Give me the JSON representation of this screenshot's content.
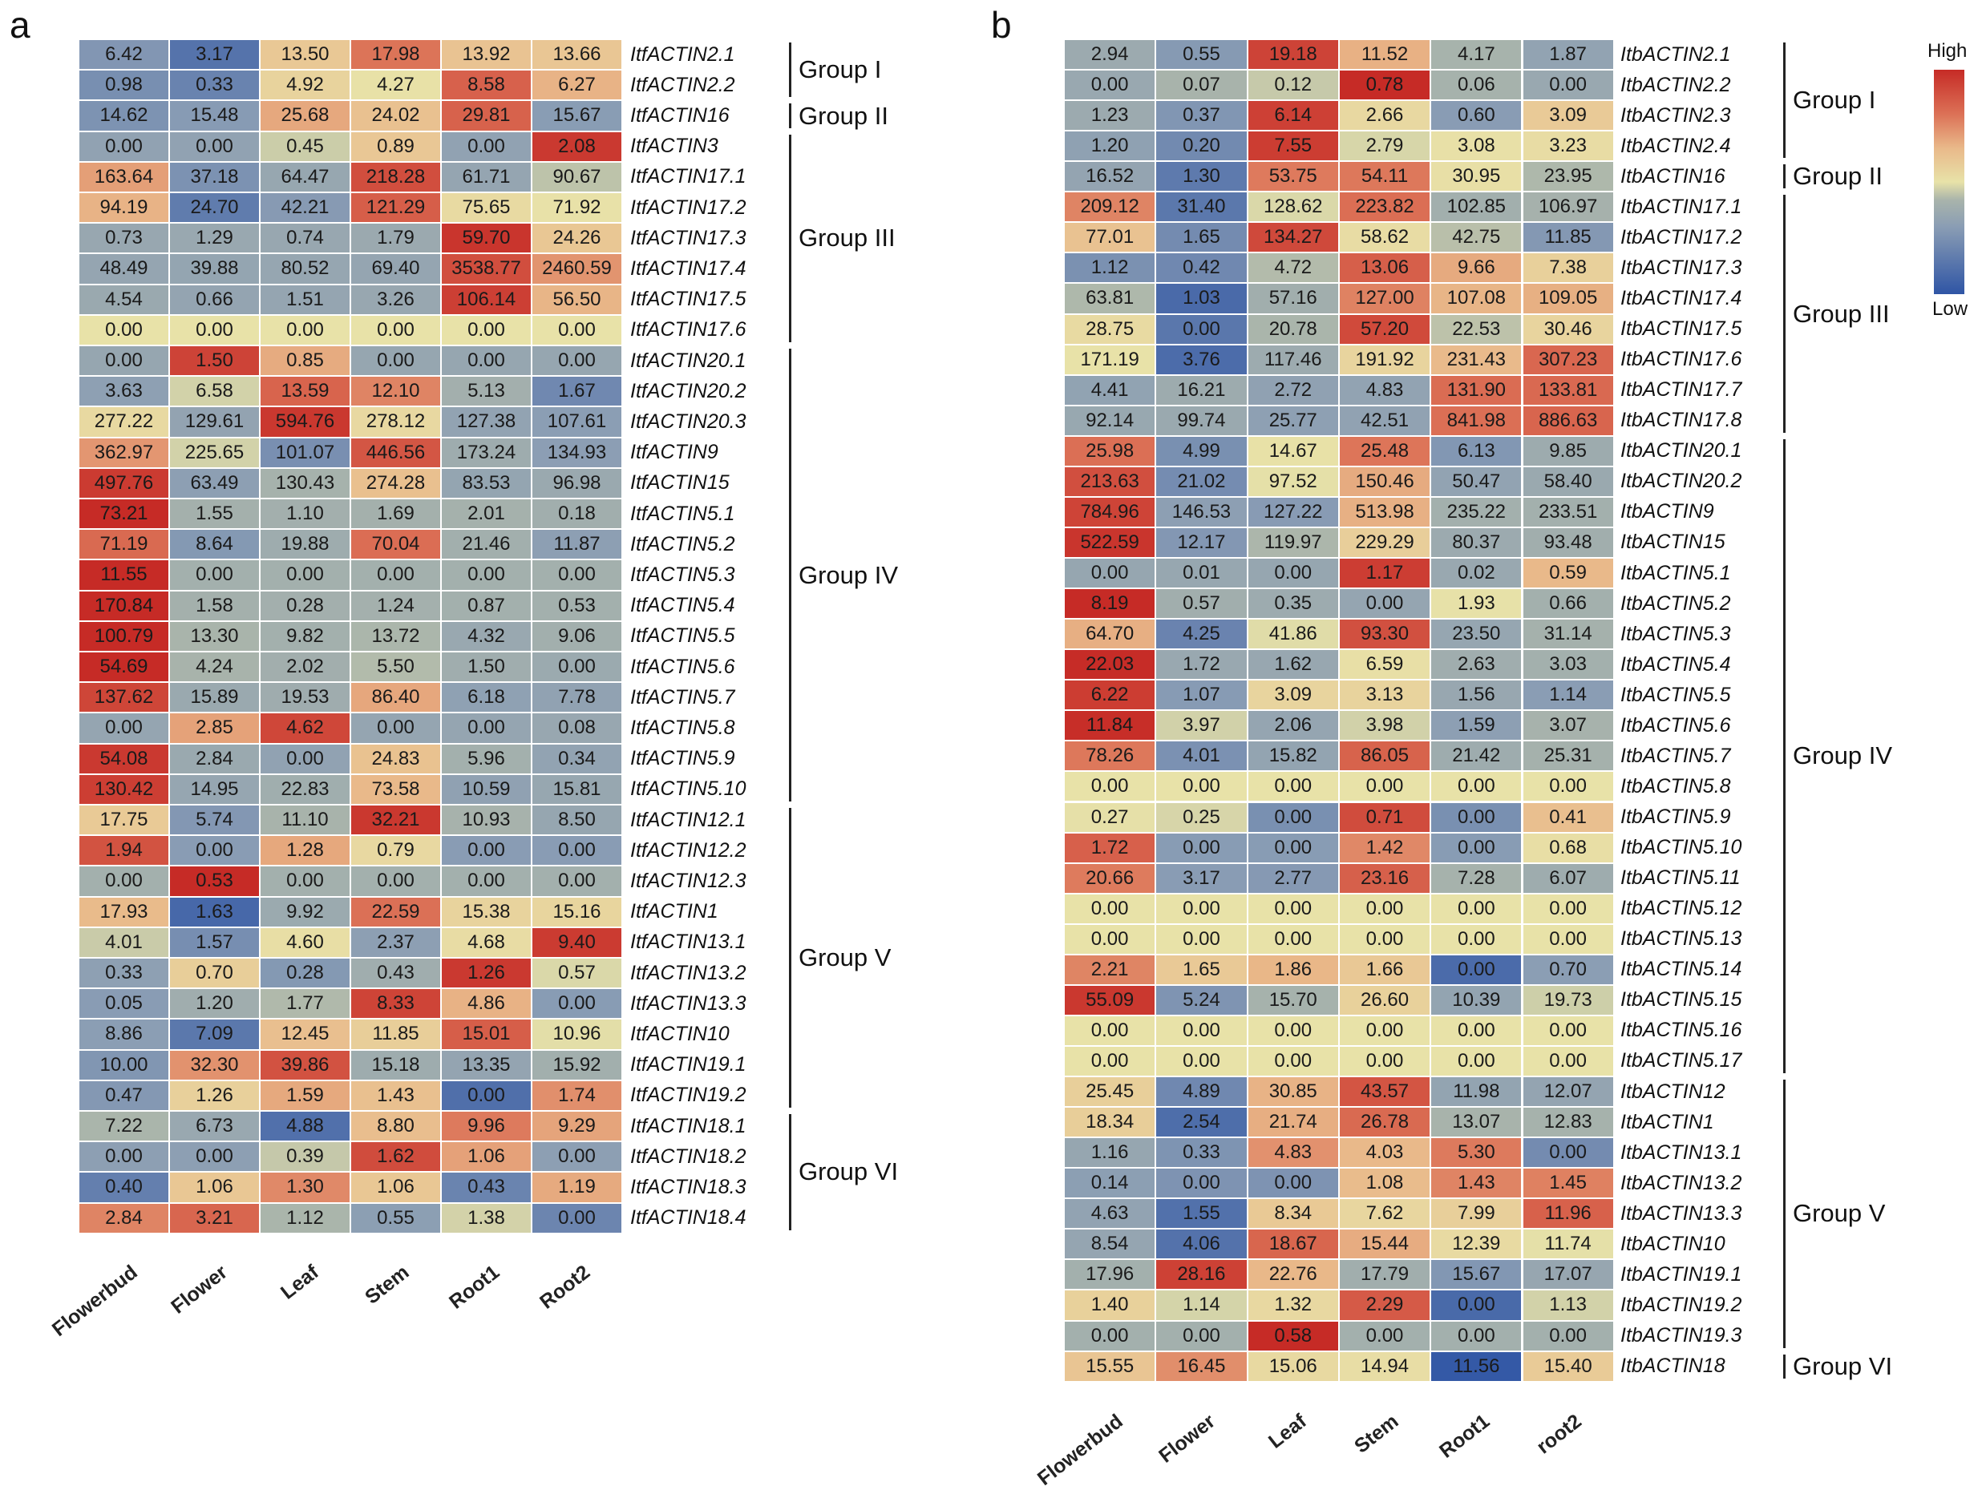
{
  "legend": {
    "high": "High",
    "low": "Low"
  },
  "colors": {
    "low": "#2f55a5",
    "mid": "#e8e2a8",
    "high": "#c62b26"
  },
  "chart_data": [
    {
      "type": "heatmap",
      "panel": "a",
      "columns": [
        "Flowerbud",
        "Flower",
        "Leaf",
        "Stem",
        "Root1",
        "Root2"
      ],
      "rows": [
        {
          "gene": "ItfACTIN2.1",
          "values": [
            6.42,
            3.17,
            13.5,
            17.98,
            13.92,
            13.66
          ]
        },
        {
          "gene": "ItfACTIN2.2",
          "values": [
            0.98,
            0.33,
            4.92,
            4.27,
            8.58,
            6.27
          ]
        },
        {
          "gene": "ItfACTIN16",
          "values": [
            14.62,
            15.48,
            25.68,
            24.02,
            29.81,
            15.67
          ]
        },
        {
          "gene": "ItfACTIN3",
          "values": [
            0.0,
            0.0,
            0.45,
            0.89,
            0.0,
            2.08
          ]
        },
        {
          "gene": "ItfACTIN17.1",
          "values": [
            163.64,
            37.18,
            64.47,
            218.28,
            61.71,
            90.67
          ]
        },
        {
          "gene": "ItfACTIN17.2",
          "values": [
            94.19,
            24.7,
            42.21,
            121.29,
            75.65,
            71.92
          ]
        },
        {
          "gene": "ItfACTIN17.3",
          "values": [
            0.73,
            1.29,
            0.74,
            1.79,
            59.7,
            24.26
          ]
        },
        {
          "gene": "ItfACTIN17.4",
          "values": [
            48.49,
            39.88,
            80.52,
            69.4,
            3538.77,
            2460.59
          ]
        },
        {
          "gene": "ItfACTIN17.5",
          "values": [
            4.54,
            0.66,
            1.51,
            3.26,
            106.14,
            56.5
          ]
        },
        {
          "gene": "ItfACTIN17.6",
          "values": [
            0.0,
            0.0,
            0.0,
            0.0,
            0.0,
            0.0
          ]
        },
        {
          "gene": "ItfACTIN20.1",
          "values": [
            0.0,
            1.5,
            0.85,
            0.0,
            0.0,
            0.0
          ]
        },
        {
          "gene": "ItfACTIN20.2",
          "values": [
            3.63,
            6.58,
            13.59,
            12.1,
            5.13,
            1.67
          ]
        },
        {
          "gene": "ItfACTIN20.3",
          "values": [
            277.22,
            129.61,
            594.76,
            278.12,
            127.38,
            107.61
          ]
        },
        {
          "gene": "ItfACTIN9",
          "values": [
            362.97,
            225.65,
            101.07,
            446.56,
            173.24,
            134.93
          ]
        },
        {
          "gene": "ItfACTIN15",
          "values": [
            497.76,
            63.49,
            130.43,
            274.28,
            83.53,
            96.98
          ]
        },
        {
          "gene": "ItfACTIN5.1",
          "values": [
            73.21,
            1.55,
            1.1,
            1.69,
            2.01,
            0.18
          ]
        },
        {
          "gene": "ItfACTIN5.2",
          "values": [
            71.19,
            8.64,
            19.88,
            70.04,
            21.46,
            11.87
          ]
        },
        {
          "gene": "ItfACTIN5.3",
          "values": [
            11.55,
            0.0,
            0.0,
            0.0,
            0.0,
            0.0
          ]
        },
        {
          "gene": "ItfACTIN5.4",
          "values": [
            170.84,
            1.58,
            0.28,
            1.24,
            0.87,
            0.53
          ]
        },
        {
          "gene": "ItfACTIN5.5",
          "values": [
            100.79,
            13.3,
            9.82,
            13.72,
            4.32,
            9.06
          ]
        },
        {
          "gene": "ItfACTIN5.6",
          "values": [
            54.69,
            4.24,
            2.02,
            5.5,
            1.5,
            0.0
          ]
        },
        {
          "gene": "ItfACTIN5.7",
          "values": [
            137.62,
            15.89,
            19.53,
            86.4,
            6.18,
            7.78
          ]
        },
        {
          "gene": "ItfACTIN5.8",
          "values": [
            0.0,
            2.85,
            4.62,
            0.0,
            0.0,
            0.08
          ]
        },
        {
          "gene": "ItfACTIN5.9",
          "values": [
            54.08,
            2.84,
            0.0,
            24.83,
            5.96,
            0.34
          ]
        },
        {
          "gene": "ItfACTIN5.10",
          "values": [
            130.42,
            14.95,
            22.83,
            73.58,
            10.59,
            15.81
          ]
        },
        {
          "gene": "ItfACTIN12.1",
          "values": [
            17.75,
            5.74,
            11.1,
            32.21,
            10.93,
            8.5
          ]
        },
        {
          "gene": "ItfACTIN12.2",
          "values": [
            1.94,
            0.0,
            1.28,
            0.79,
            0.0,
            0.0
          ]
        },
        {
          "gene": "ItfACTIN12.3",
          "values": [
            0.0,
            0.53,
            0.0,
            0.0,
            0.0,
            0.0
          ]
        },
        {
          "gene": "ItfACTIN1",
          "values": [
            17.93,
            1.63,
            9.92,
            22.59,
            15.38,
            15.16
          ]
        },
        {
          "gene": "ItfACTIN13.1",
          "values": [
            4.01,
            1.57,
            4.6,
            2.37,
            4.68,
            9.4
          ]
        },
        {
          "gene": "ItfACTIN13.2",
          "values": [
            0.33,
            0.7,
            0.28,
            0.43,
            1.26,
            0.57
          ]
        },
        {
          "gene": "ItfACTIN13.3",
          "values": [
            0.05,
            1.2,
            1.77,
            8.33,
            4.86,
            0.0
          ]
        },
        {
          "gene": "ItfACTIN10",
          "values": [
            8.86,
            7.09,
            12.45,
            11.85,
            15.01,
            10.96
          ]
        },
        {
          "gene": "ItfACTIN19.1",
          "values": [
            10.0,
            32.3,
            39.86,
            15.18,
            13.35,
            15.92
          ]
        },
        {
          "gene": "ItfACTIN19.2",
          "values": [
            0.47,
            1.26,
            1.59,
            1.43,
            0.0,
            1.74
          ]
        },
        {
          "gene": "ItfACTIN18.1",
          "values": [
            7.22,
            6.73,
            4.88,
            8.8,
            9.96,
            9.29
          ]
        },
        {
          "gene": "ItfACTIN18.2",
          "values": [
            0.0,
            0.0,
            0.39,
            1.62,
            1.06,
            0.0
          ]
        },
        {
          "gene": "ItfACTIN18.3",
          "values": [
            0.4,
            1.06,
            1.3,
            1.06,
            0.43,
            1.19
          ]
        },
        {
          "gene": "ItfACTIN18.4",
          "values": [
            2.84,
            3.21,
            1.12,
            0.55,
            1.38,
            0.0
          ]
        }
      ],
      "groups": [
        {
          "label": "Group I",
          "start": 0,
          "end": 1
        },
        {
          "label": "Group II",
          "start": 2,
          "end": 2
        },
        {
          "label": "Group III",
          "start": 3,
          "end": 9
        },
        {
          "label": "Group IV",
          "start": 10,
          "end": 24
        },
        {
          "label": "Group V",
          "start": 25,
          "end": 34
        },
        {
          "label": "Group VI",
          "start": 35,
          "end": 38
        }
      ]
    },
    {
      "type": "heatmap",
      "panel": "b",
      "columns": [
        "Flowerbud",
        "Flower",
        "Leaf",
        "Stem",
        "Root1",
        "root2"
      ],
      "rows": [
        {
          "gene": "ItbACTIN2.1",
          "values": [
            2.94,
            0.55,
            19.18,
            11.52,
            4.17,
            1.87
          ]
        },
        {
          "gene": "ItbACTIN2.2",
          "values": [
            0.0,
            0.07,
            0.12,
            0.78,
            0.06,
            0.0
          ]
        },
        {
          "gene": "ItbACTIN2.3",
          "values": [
            1.23,
            0.37,
            6.14,
            2.66,
            0.6,
            3.09
          ]
        },
        {
          "gene": "ItbACTIN2.4",
          "values": [
            1.2,
            0.2,
            7.55,
            2.79,
            3.08,
            3.23
          ]
        },
        {
          "gene": "ItbACTIN16",
          "values": [
            16.52,
            1.3,
            53.75,
            54.11,
            30.95,
            23.95
          ]
        },
        {
          "gene": "ItbACTIN17.1",
          "values": [
            209.12,
            31.4,
            128.62,
            223.82,
            102.85,
            106.97
          ]
        },
        {
          "gene": "ItbACTIN17.2",
          "values": [
            77.01,
            1.65,
            134.27,
            58.62,
            42.75,
            11.85
          ]
        },
        {
          "gene": "ItbACTIN17.3",
          "values": [
            1.12,
            0.42,
            4.72,
            13.06,
            9.66,
            7.38
          ]
        },
        {
          "gene": "ItbACTIN17.4",
          "values": [
            63.81,
            1.03,
            57.16,
            127.0,
            107.08,
            109.05
          ]
        },
        {
          "gene": "ItbACTIN17.5",
          "values": [
            28.75,
            0.0,
            20.78,
            57.2,
            22.53,
            30.46
          ]
        },
        {
          "gene": "ItbACTIN17.6",
          "values": [
            171.19,
            3.76,
            117.46,
            191.92,
            231.43,
            307.23
          ]
        },
        {
          "gene": "ItbACTIN17.7",
          "values": [
            4.41,
            16.21,
            2.72,
            4.83,
            131.9,
            133.81
          ]
        },
        {
          "gene": "ItbACTIN17.8",
          "values": [
            92.14,
            99.74,
            25.77,
            42.51,
            841.98,
            886.63
          ]
        },
        {
          "gene": "ItbACTIN20.1",
          "values": [
            25.98,
            4.99,
            14.67,
            25.48,
            6.13,
            9.85
          ]
        },
        {
          "gene": "ItbACTIN20.2",
          "values": [
            213.63,
            21.02,
            97.52,
            150.46,
            50.47,
            58.4
          ]
        },
        {
          "gene": "ItbACTIN9",
          "values": [
            784.96,
            146.53,
            127.22,
            513.98,
            235.22,
            233.51
          ]
        },
        {
          "gene": "ItbACTIN15",
          "values": [
            522.59,
            12.17,
            119.97,
            229.29,
            80.37,
            93.48
          ]
        },
        {
          "gene": "ItbACTIN5.1",
          "values": [
            0.0,
            0.01,
            0.0,
            1.17,
            0.02,
            0.59
          ]
        },
        {
          "gene": "ItbACTIN5.2",
          "values": [
            8.19,
            0.57,
            0.35,
            0.0,
            1.93,
            0.66
          ]
        },
        {
          "gene": "ItbACTIN5.3",
          "values": [
            64.7,
            4.25,
            41.86,
            93.3,
            23.5,
            31.14
          ]
        },
        {
          "gene": "ItbACTIN5.4",
          "values": [
            22.03,
            1.72,
            1.62,
            6.59,
            2.63,
            3.03
          ]
        },
        {
          "gene": "ItbACTIN5.5",
          "values": [
            6.22,
            1.07,
            3.09,
            3.13,
            1.56,
            1.14
          ]
        },
        {
          "gene": "ItbACTIN5.6",
          "values": [
            11.84,
            3.97,
            2.06,
            3.98,
            1.59,
            3.07
          ]
        },
        {
          "gene": "ItbACTIN5.7",
          "values": [
            78.26,
            4.01,
            15.82,
            86.05,
            21.42,
            25.31
          ]
        },
        {
          "gene": "ItbACTIN5.8",
          "values": [
            0.0,
            0.0,
            0.0,
            0.0,
            0.0,
            0.0
          ]
        },
        {
          "gene": "ItbACTIN5.9",
          "values": [
            0.27,
            0.25,
            0.0,
            0.71,
            0.0,
            0.41
          ]
        },
        {
          "gene": "ItbACTIN5.10",
          "values": [
            1.72,
            0.0,
            0.0,
            1.42,
            0.0,
            0.68
          ]
        },
        {
          "gene": "ItbACTIN5.11",
          "values": [
            20.66,
            3.17,
            2.77,
            23.16,
            7.28,
            6.07
          ]
        },
        {
          "gene": "ItbACTIN5.12",
          "values": [
            0.0,
            0.0,
            0.0,
            0.0,
            0.0,
            0.0
          ]
        },
        {
          "gene": "ItbACTIN5.13",
          "values": [
            0.0,
            0.0,
            0.0,
            0.0,
            0.0,
            0.0
          ]
        },
        {
          "gene": "ItbACTIN5.14",
          "values": [
            2.21,
            1.65,
            1.86,
            1.66,
            0.0,
            0.7
          ]
        },
        {
          "gene": "ItbACTIN5.15",
          "values": [
            55.09,
            5.24,
            15.7,
            26.6,
            10.39,
            19.73
          ]
        },
        {
          "gene": "ItbACTIN5.16",
          "values": [
            0.0,
            0.0,
            0.0,
            0.0,
            0.0,
            0.0
          ]
        },
        {
          "gene": "ItbACTIN5.17",
          "values": [
            0.0,
            0.0,
            0.0,
            0.0,
            0.0,
            0.0
          ]
        },
        {
          "gene": "ItbACTIN12",
          "values": [
            25.45,
            4.89,
            30.85,
            43.57,
            11.98,
            12.07
          ]
        },
        {
          "gene": "ItbACTIN1",
          "values": [
            18.34,
            2.54,
            21.74,
            26.78,
            13.07,
            12.83
          ]
        },
        {
          "gene": "ItbACTIN13.1",
          "values": [
            1.16,
            0.33,
            4.83,
            4.03,
            5.3,
            0.0
          ]
        },
        {
          "gene": "ItbACTIN13.2",
          "values": [
            0.14,
            0.0,
            0.0,
            1.08,
            1.43,
            1.45
          ]
        },
        {
          "gene": "ItbACTIN13.3",
          "values": [
            4.63,
            1.55,
            8.34,
            7.62,
            7.99,
            11.96
          ]
        },
        {
          "gene": "ItbACTIN10",
          "values": [
            8.54,
            4.06,
            18.67,
            15.44,
            12.39,
            11.74
          ]
        },
        {
          "gene": "ItbACTIN19.1",
          "values": [
            17.96,
            28.16,
            22.76,
            17.79,
            15.67,
            17.07
          ]
        },
        {
          "gene": "ItbACTIN19.2",
          "values": [
            1.4,
            1.14,
            1.32,
            2.29,
            0.0,
            1.13
          ]
        },
        {
          "gene": "ItbACTIN19.3",
          "values": [
            0.0,
            0.0,
            0.58,
            0.0,
            0.0,
            0.0
          ]
        },
        {
          "gene": "ItbACTIN18",
          "values": [
            15.55,
            16.45,
            15.06,
            14.94,
            11.56,
            15.4
          ]
        }
      ],
      "groups": [
        {
          "label": "Group I",
          "start": 0,
          "end": 3
        },
        {
          "label": "Group II",
          "start": 4,
          "end": 4
        },
        {
          "label": "Group III",
          "start": 5,
          "end": 12
        },
        {
          "label": "Group IV",
          "start": 13,
          "end": 33
        },
        {
          "label": "Group V",
          "start": 34,
          "end": 42
        },
        {
          "label": "Group VI",
          "start": 43,
          "end": 43
        }
      ]
    }
  ]
}
